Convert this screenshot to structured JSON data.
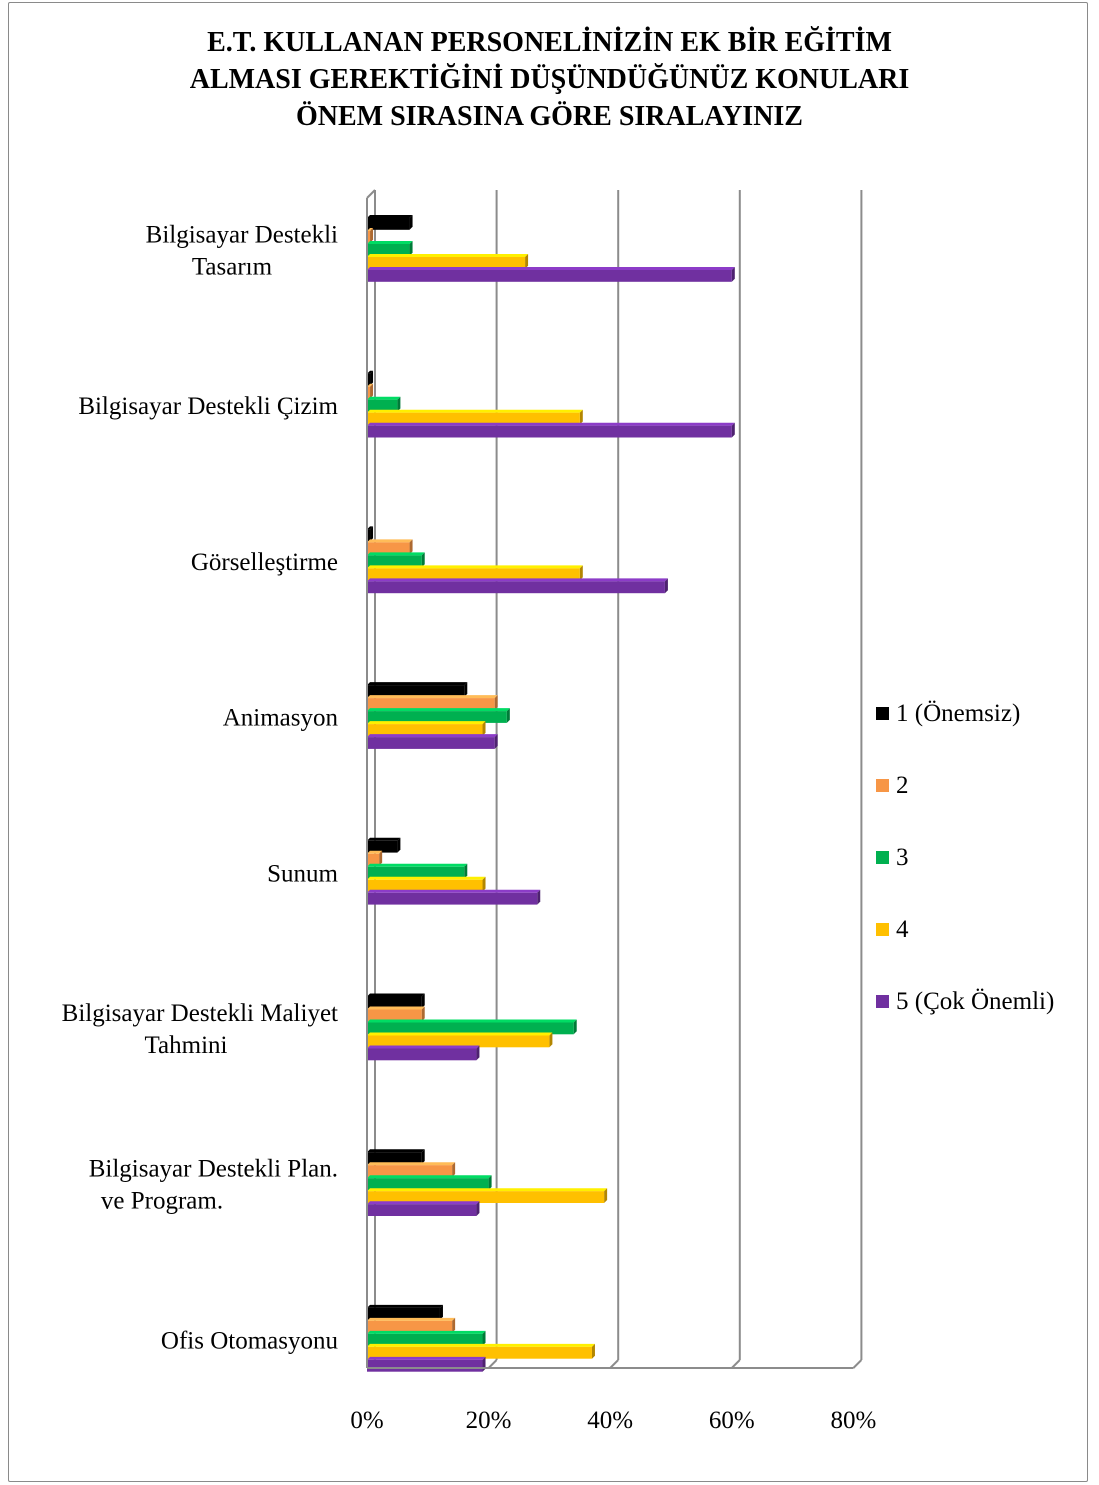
{
  "chart_data": {
    "type": "bar",
    "orientation": "horizontal",
    "title": [
      "E.T. KULLANAN PERSONELİNİZİN EK BİR EĞİTİM",
      "ALMASI GEREKTİĞİNİ DÜŞÜNDÜĞÜNÜZ KONULARI",
      "ÖNEM SIRASINA GÖRE SIRALAYINIZ"
    ],
    "categories": [
      [
        "Bilgisayar Destekli",
        "Tasarım"
      ],
      [
        "Bilgisayar Destekli Çizim"
      ],
      [
        "Görselleştirme"
      ],
      [
        "Animasyon"
      ],
      [
        "Sunum"
      ],
      [
        "Bilgisayar Destekli Maliyet",
        "Tahmini"
      ],
      [
        "Bilgisayar Destekli Plan.",
        "ve Program."
      ],
      [
        "Ofis Otomasyonu"
      ]
    ],
    "series": [
      {
        "name": "1 (Önemsiz)",
        "color": "#000000",
        "values": [
          7,
          0.5,
          0.5,
          16,
          5,
          9,
          9,
          12
        ]
      },
      {
        "name": "2",
        "color": "#f79646",
        "values": [
          0.5,
          0.5,
          7,
          21,
          2,
          9,
          14,
          14
        ]
      },
      {
        "name": "3",
        "color": "#00b050",
        "values": [
          7,
          5,
          9,
          23,
          16,
          34,
          20,
          19
        ]
      },
      {
        "name": "4",
        "color": "#ffc000",
        "values": [
          26,
          35,
          35,
          19,
          19,
          30,
          39,
          37
        ]
      },
      {
        "name": "5 (Çok Önemli)",
        "color": "#7030a0",
        "values": [
          60,
          60,
          49,
          21,
          28,
          18,
          18,
          19
        ]
      }
    ],
    "x_ticks": [
      "0%",
      "20%",
      "40%",
      "60%",
      "80%"
    ],
    "xlim": [
      0,
      80
    ],
    "grid": true,
    "legend_position": "right"
  }
}
